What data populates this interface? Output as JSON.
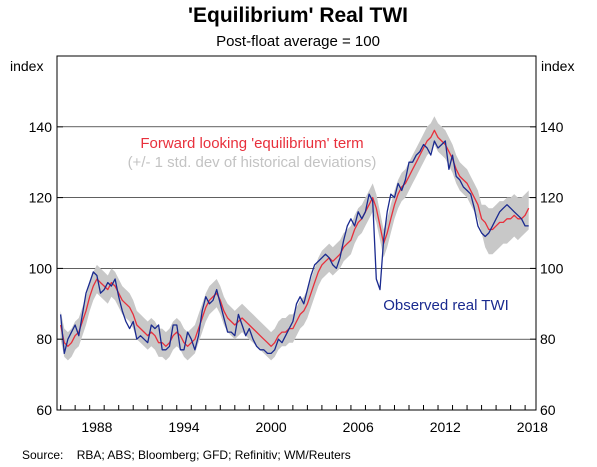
{
  "chart_data": {
    "type": "line",
    "title": "'Equilibrium' Real TWI",
    "subtitle": "Post-float average = 100",
    "ylabel_left": "index",
    "ylabel_right": "index",
    "ylim": [
      60,
      160
    ],
    "y_ticks": [
      60,
      80,
      100,
      120,
      140
    ],
    "y_tick_labels": [
      "60",
      "80",
      "100",
      "120",
      "140"
    ],
    "xlim": [
      1985.75,
      2018.75
    ],
    "x_ticks": [
      1988,
      1994,
      2000,
      2006,
      2012,
      2018
    ],
    "x_tick_labels": [
      "1988",
      "1994",
      "2000",
      "2006",
      "2012",
      "2018"
    ],
    "grid": "horizontal",
    "source": "Source:    RBA; ABS; Bloomberg; GFD; Refinitiv; WM/Reuters",
    "annotations": {
      "forward": "Forward looking 'equilibrium' term",
      "band": "(+/- 1 std. dev of historical deviations)",
      "observed": "Observed real TWI"
    },
    "colors": {
      "forward": "#e8303c",
      "observed": "#1a2a8f",
      "band": "#c8c8c8"
    },
    "series": [
      {
        "name": "Forward looking 'equilibrium' term",
        "x": [
          1986.0,
          1986.25,
          1986.5,
          1986.75,
          1987.0,
          1987.25,
          1987.5,
          1987.75,
          1988.0,
          1988.25,
          1988.5,
          1988.75,
          1989.0,
          1989.25,
          1989.5,
          1989.75,
          1990.0,
          1990.25,
          1990.5,
          1990.75,
          1991.0,
          1991.25,
          1991.5,
          1991.75,
          1992.0,
          1992.25,
          1992.5,
          1992.75,
          1993.0,
          1993.25,
          1993.5,
          1993.75,
          1994.0,
          1994.25,
          1994.5,
          1994.75,
          1995.0,
          1995.25,
          1995.5,
          1995.75,
          1996.0,
          1996.25,
          1996.5,
          1996.75,
          1997.0,
          1997.25,
          1997.5,
          1997.75,
          1998.0,
          1998.25,
          1998.5,
          1998.75,
          1999.0,
          1999.25,
          1999.5,
          1999.75,
          2000.0,
          2000.25,
          2000.5,
          2000.75,
          2001.0,
          2001.25,
          2001.5,
          2001.75,
          2002.0,
          2002.25,
          2002.5,
          2002.75,
          2003.0,
          2003.25,
          2003.5,
          2003.75,
          2004.0,
          2004.25,
          2004.5,
          2004.75,
          2005.0,
          2005.25,
          2005.5,
          2005.75,
          2006.0,
          2006.25,
          2006.5,
          2006.75,
          2007.0,
          2007.25,
          2007.5,
          2007.75,
          2008.0,
          2008.25,
          2008.5,
          2008.75,
          2009.0,
          2009.25,
          2009.5,
          2009.75,
          2010.0,
          2010.25,
          2010.5,
          2010.75,
          2011.0,
          2011.25,
          2011.5,
          2011.75,
          2012.0,
          2012.25,
          2012.5,
          2012.75,
          2013.0,
          2013.25,
          2013.5,
          2013.75,
          2014.0,
          2014.25,
          2014.5,
          2014.75,
          2015.0,
          2015.25,
          2015.5,
          2015.75,
          2016.0,
          2016.25,
          2016.5,
          2016.75,
          2017.0,
          2017.25,
          2017.5,
          2017.75,
          2018.0,
          2018.25
        ],
        "y": [
          84,
          79,
          78,
          79,
          81,
          82,
          85,
          88,
          92,
          95,
          97,
          96,
          95,
          94,
          96,
          95,
          93,
          91,
          90,
          89,
          87,
          84,
          83,
          82,
          81,
          82,
          81,
          79,
          79,
          78,
          79,
          81,
          82,
          81,
          79,
          78,
          79,
          80,
          83,
          86,
          89,
          91,
          92,
          93,
          91,
          88,
          86,
          85,
          84,
          85,
          86,
          85,
          84,
          83,
          82,
          81,
          80,
          79,
          78,
          79,
          81,
          82,
          82,
          83,
          83,
          85,
          87,
          88,
          90,
          93,
          96,
          99,
          101,
          102,
          103,
          102,
          103,
          104,
          106,
          107,
          108,
          111,
          113,
          114,
          116,
          118,
          120,
          117,
          112,
          107,
          110,
          114,
          118,
          121,
          123,
          124,
          126,
          128,
          130,
          132,
          134,
          136,
          137,
          139,
          137,
          136,
          135,
          133,
          131,
          128,
          126,
          125,
          124,
          122,
          120,
          118,
          114,
          113,
          111,
          111,
          112,
          113,
          113,
          114,
          114,
          115,
          114,
          114,
          115,
          117
        ],
        "band_lower": [
          80,
          75,
          74,
          75,
          77,
          78,
          81,
          84,
          88,
          91,
          93,
          92,
          91,
          90,
          92,
          91,
          89,
          87,
          86,
          85,
          83,
          80,
          79,
          78,
          77,
          78,
          77,
          75,
          75,
          74,
          75,
          77,
          78,
          77,
          75,
          74,
          75,
          76,
          79,
          82,
          85,
          87,
          88,
          89,
          87,
          84,
          82,
          81,
          80,
          81,
          82,
          81,
          80,
          79,
          78,
          77,
          76,
          75,
          74,
          75,
          77,
          78,
          78,
          79,
          79,
          81,
          83,
          84,
          86,
          89,
          92,
          95,
          97,
          98,
          99,
          98,
          99,
          100,
          102,
          103,
          104,
          107,
          109,
          110,
          112,
          114,
          116,
          113,
          108,
          103,
          106,
          110,
          114,
          117,
          119,
          120,
          122,
          124,
          126,
          128,
          130,
          132,
          133,
          135,
          133,
          132,
          131,
          129,
          127,
          124,
          122,
          121,
          120,
          118,
          116,
          114,
          110,
          106,
          104,
          104,
          105,
          106,
          107,
          107,
          108,
          109,
          108,
          109,
          110,
          111
        ],
        "band_upper": [
          88,
          83,
          82,
          83,
          85,
          86,
          89,
          92,
          96,
          99,
          101,
          100,
          99,
          98,
          100,
          99,
          97,
          95,
          94,
          93,
          91,
          88,
          87,
          86,
          85,
          86,
          85,
          83,
          83,
          82,
          83,
          85,
          86,
          85,
          83,
          82,
          83,
          84,
          87,
          90,
          93,
          95,
          96,
          97,
          95,
          92,
          90,
          89,
          88,
          89,
          90,
          89,
          88,
          87,
          86,
          85,
          84,
          83,
          82,
          83,
          85,
          86,
          86,
          87,
          87,
          89,
          91,
          92,
          94,
          97,
          100,
          103,
          105,
          106,
          107,
          106,
          107,
          108,
          110,
          111,
          112,
          115,
          117,
          118,
          120,
          122,
          124,
          121,
          116,
          111,
          114,
          118,
          122,
          125,
          127,
          128,
          130,
          132,
          134,
          136,
          138,
          140,
          141,
          143,
          141,
          140,
          139,
          137,
          135,
          132,
          130,
          129,
          128,
          126,
          124,
          122,
          118,
          118,
          117,
          117,
          118,
          119,
          119,
          120,
          120,
          121,
          120,
          120,
          121,
          122
        ]
      },
      {
        "name": "Observed real TWI",
        "x": [
          1986.0,
          1986.25,
          1986.5,
          1986.75,
          1987.0,
          1987.25,
          1987.5,
          1987.75,
          1988.0,
          1988.25,
          1988.5,
          1988.75,
          1989.0,
          1989.25,
          1989.5,
          1989.75,
          1990.0,
          1990.25,
          1990.5,
          1990.75,
          1991.0,
          1991.25,
          1991.5,
          1991.75,
          1992.0,
          1992.25,
          1992.5,
          1992.75,
          1993.0,
          1993.25,
          1993.5,
          1993.75,
          1994.0,
          1994.25,
          1994.5,
          1994.75,
          1995.0,
          1995.25,
          1995.5,
          1995.75,
          1996.0,
          1996.25,
          1996.5,
          1996.75,
          1997.0,
          1997.25,
          1997.5,
          1997.75,
          1998.0,
          1998.25,
          1998.5,
          1998.75,
          1999.0,
          1999.25,
          1999.5,
          1999.75,
          2000.0,
          2000.25,
          2000.5,
          2000.75,
          2001.0,
          2001.25,
          2001.5,
          2001.75,
          2002.0,
          2002.25,
          2002.5,
          2002.75,
          2003.0,
          2003.25,
          2003.5,
          2003.75,
          2004.0,
          2004.25,
          2004.5,
          2004.75,
          2005.0,
          2005.25,
          2005.5,
          2005.75,
          2006.0,
          2006.25,
          2006.5,
          2006.75,
          2007.0,
          2007.25,
          2007.5,
          2007.75,
          2008.0,
          2008.25,
          2008.5,
          2008.75,
          2009.0,
          2009.25,
          2009.5,
          2009.75,
          2010.0,
          2010.25,
          2010.5,
          2010.75,
          2011.0,
          2011.25,
          2011.5,
          2011.75,
          2012.0,
          2012.25,
          2012.5,
          2012.75,
          2013.0,
          2013.25,
          2013.5,
          2013.75,
          2014.0,
          2014.25,
          2014.5,
          2014.75,
          2015.0,
          2015.25,
          2015.5,
          2015.75,
          2016.0,
          2016.25,
          2016.5,
          2016.75,
          2017.0,
          2017.25,
          2017.5,
          2017.75,
          2018.0,
          2018.25
        ],
        "y": [
          87,
          76,
          80,
          82,
          84,
          81,
          87,
          93,
          96,
          99,
          98,
          93,
          94,
          96,
          95,
          97,
          92,
          88,
          85,
          83,
          85,
          80,
          81,
          80,
          79,
          84,
          83,
          84,
          77,
          77,
          78,
          84,
          84,
          77,
          77,
          82,
          80,
          77,
          81,
          88,
          92,
          90,
          91,
          94,
          90,
          86,
          82,
          82,
          81,
          87,
          84,
          81,
          83,
          80,
          78,
          77,
          77,
          76,
          76,
          77,
          80,
          79,
          81,
          83,
          85,
          90,
          92,
          90,
          94,
          98,
          101,
          102,
          103,
          104,
          103,
          101,
          100,
          103,
          108,
          112,
          114,
          112,
          116,
          114,
          116,
          121,
          119,
          97,
          94,
          108,
          116,
          121,
          120,
          124,
          122,
          125,
          130,
          130,
          132,
          133,
          135,
          134,
          132,
          136,
          134,
          135,
          136,
          128,
          132,
          126,
          125,
          123,
          122,
          121,
          117,
          112,
          110,
          109,
          110,
          112,
          114,
          116,
          117,
          118,
          117,
          116,
          115,
          114,
          112,
          112
        ]
      }
    ]
  }
}
